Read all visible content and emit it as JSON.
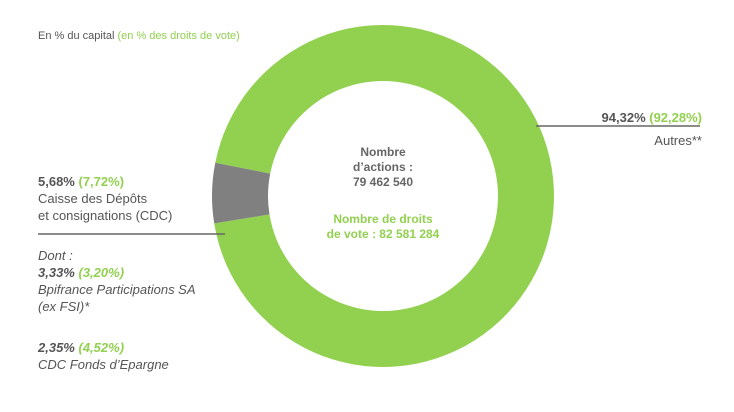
{
  "legend": {
    "capital": "En % du capital",
    "votes": "(en % des droits de vote)"
  },
  "center": {
    "shares_label": "Nombre",
    "shares_label2": "d’actions :",
    "shares_value": "79 462 540",
    "votes_label": "Nombre de droits",
    "votes_value": "de vote : 82 581 284"
  },
  "labels": {
    "autres_capital": "94,32%",
    "autres_votes": "(92,28%)",
    "autres_name": "Autres**",
    "cdc_capital": "5,68%",
    "cdc_votes": "(7,72%)",
    "cdc_name1": "Caisse des Dépôts",
    "cdc_name2": "et consignations (CDC)",
    "dont": "Dont :",
    "bpi_capital": "3,33%",
    "bpi_votes": "(3,20%)",
    "bpi_name1": "Bpifrance Participations SA",
    "bpi_name2": "(ex FSI)*",
    "fonds_capital": "2,35%",
    "fonds_votes": "(4,52%)",
    "fonds_name": "CDC Fonds d’Epargne"
  },
  "chart_data": {
    "type": "pie",
    "donut": true,
    "slices": [
      {
        "name": "Autres**",
        "capital_pct": 94.32,
        "votes_pct": 92.28,
        "color": "#92d050"
      },
      {
        "name": "Caisse des Dépôts et consignations (CDC)",
        "capital_pct": 5.68,
        "votes_pct": 7.72,
        "color": "#808080"
      }
    ],
    "sub_breakdown": [
      {
        "name": "Bpifrance Participations SA (ex FSI)*",
        "capital_pct": 3.33,
        "votes_pct": 3.2
      },
      {
        "name": "CDC Fonds d’Epargne",
        "capital_pct": 2.35,
        "votes_pct": 4.52
      }
    ]
  }
}
